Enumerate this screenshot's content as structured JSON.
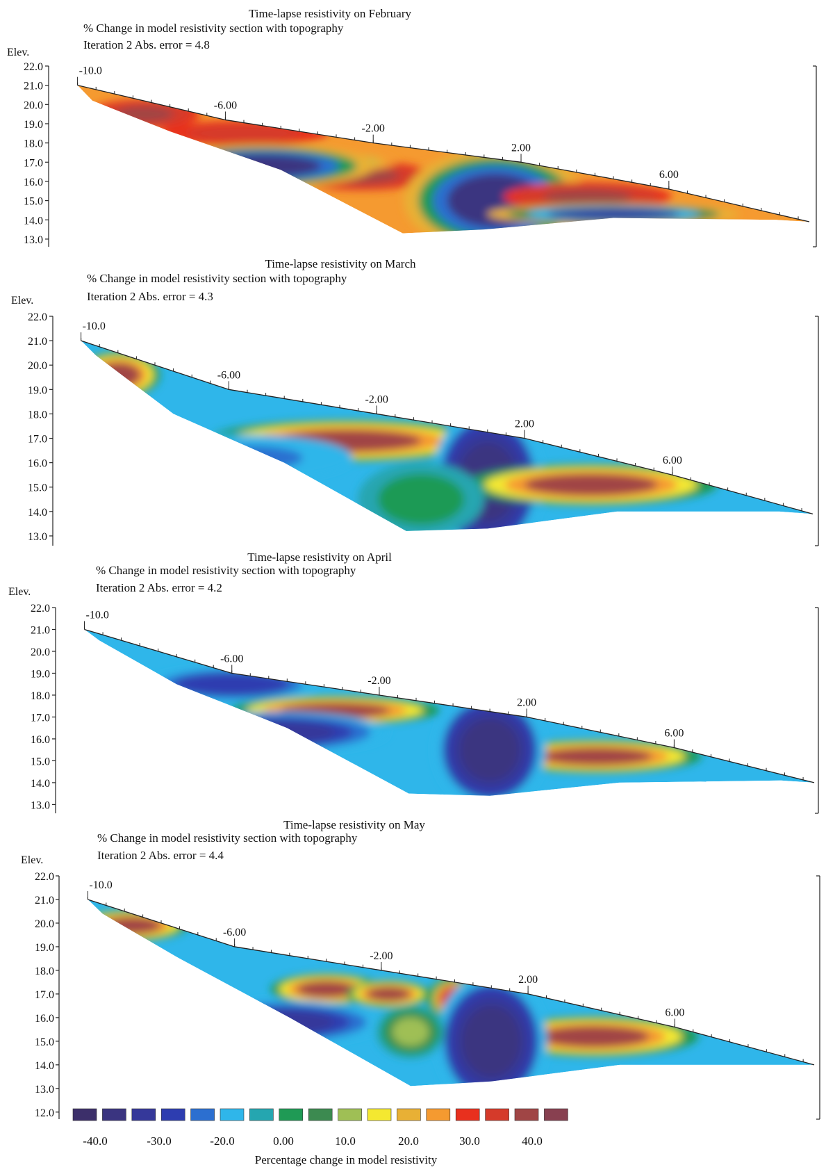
{
  "chart_data": [
    {
      "type": "heatmap",
      "title": "Time-lapse resistivity on February",
      "subtitle": "% Change in model resistivity section with topography",
      "iteration_label": "Iteration 2 Abs. error = 4.8",
      "ylabel": "Elev.",
      "y_ticks": [
        "22.0",
        "21.0",
        "20.0",
        "19.0",
        "18.0",
        "17.0",
        "16.0",
        "15.0",
        "14.0",
        "13.0"
      ],
      "x_ticks": [
        {
          "label": "-10.0",
          "x": -10
        },
        {
          "label": "-6.00",
          "x": -6
        },
        {
          "label": "-2.00",
          "x": -2
        },
        {
          "label": "2.00",
          "x": 2
        },
        {
          "label": "6.00",
          "x": 6
        }
      ],
      "ylim": [
        12.6,
        22.0
      ],
      "xlim": [
        -10.5,
        9.8
      ],
      "topography": [
        [
          -10.0,
          21.0
        ],
        [
          -6.0,
          19.2
        ],
        [
          -2.0,
          18.0
        ],
        [
          2.0,
          17.0
        ],
        [
          6.0,
          15.6
        ],
        [
          9.8,
          13.9
        ]
      ],
      "bottom": [
        [
          -9.6,
          20.2
        ],
        [
          -7.5,
          18.6
        ],
        [
          -4.5,
          16.6
        ],
        [
          -1.2,
          13.3
        ],
        [
          1.0,
          13.5
        ],
        [
          4.5,
          14.1
        ],
        [
          8.9,
          14.0
        ]
      ],
      "anomalies": [
        {
          "x": -8.2,
          "y": 19.5,
          "rx": 0.8,
          "ry": 0.4,
          "value": 40
        },
        {
          "x": -5.5,
          "y": 18.5,
          "rx": 1.2,
          "ry": 0.35,
          "value": 35
        },
        {
          "x": -2.3,
          "y": 16.3,
          "rx": 1.0,
          "ry": 0.4,
          "value": 40
        },
        {
          "x": -3.1,
          "y": 17.0,
          "rx": 0.9,
          "ry": 0.3,
          "value": 0
        },
        {
          "x": 1.3,
          "y": 15.0,
          "rx": 1.3,
          "ry": 1.4,
          "value": -40
        },
        {
          "x": 3.8,
          "y": 15.2,
          "rx": 1.2,
          "ry": 0.4,
          "value": 40
        },
        {
          "x": -5.0,
          "y": 16.8,
          "rx": 1.6,
          "ry": 0.6,
          "value": -40
        },
        {
          "x": 4.5,
          "y": 14.3,
          "rx": 1.8,
          "ry": 0.3,
          "value": -35
        }
      ],
      "background_value": 25
    },
    {
      "type": "heatmap",
      "title": "Time-lapse resistivity on March",
      "subtitle": "% Change in model resistivity section with topography",
      "iteration_label": "Iteration 2 Abs. error = 4.3",
      "ylabel": "Elev.",
      "y_ticks": [
        "22.0",
        "21.0",
        "20.0",
        "19.0",
        "18.0",
        "17.0",
        "16.0",
        "15.0",
        "14.0",
        "13.0"
      ],
      "x_ticks": [
        {
          "label": "-10.0",
          "x": -10
        },
        {
          "label": "-6.00",
          "x": -6
        },
        {
          "label": "-2.00",
          "x": -2
        },
        {
          "label": "2.00",
          "x": 2
        },
        {
          "label": "6.00",
          "x": 6
        }
      ],
      "ylim": [
        12.6,
        22.0
      ],
      "xlim": [
        -10.5,
        9.8
      ],
      "topography": [
        [
          -10.0,
          21.0
        ],
        [
          -6.0,
          19.0
        ],
        [
          -2.0,
          18.0
        ],
        [
          2.0,
          17.0
        ],
        [
          6.0,
          15.5
        ],
        [
          9.8,
          13.9
        ]
      ],
      "bottom": [
        [
          -9.6,
          20.4
        ],
        [
          -7.5,
          18.0
        ],
        [
          -4.5,
          16.0
        ],
        [
          -1.2,
          13.2
        ],
        [
          1.0,
          13.3
        ],
        [
          4.5,
          14.0
        ],
        [
          8.9,
          14.0
        ]
      ],
      "anomalies": [
        {
          "x": -9.0,
          "y": 19.6,
          "rx": 0.6,
          "ry": 0.5,
          "value": 40
        },
        {
          "x": -2.8,
          "y": 16.9,
          "rx": 2.0,
          "ry": 0.45,
          "value": 40
        },
        {
          "x": 1.0,
          "y": 15.2,
          "rx": 0.8,
          "ry": 1.6,
          "value": -40
        },
        {
          "x": 3.8,
          "y": 15.1,
          "rx": 1.8,
          "ry": 0.45,
          "value": 40
        },
        {
          "x": -5.5,
          "y": 16.2,
          "rx": 1.5,
          "ry": 0.5,
          "value": -20
        },
        {
          "x": -0.8,
          "y": 14.5,
          "rx": 0.9,
          "ry": 0.8,
          "value": -5
        }
      ],
      "background_value": -15
    },
    {
      "type": "heatmap",
      "title": "Time-lapse resistivity on April",
      "subtitle": "% Change in model resistivity section with topography",
      "iteration_label": "Iteration 2 Abs. error = 4.2",
      "ylabel": "Elev.",
      "y_ticks": [
        "22.0",
        "21.0",
        "20.0",
        "19.0",
        "18.0",
        "17.0",
        "16.0",
        "15.0",
        "14.0",
        "13.0"
      ],
      "x_ticks": [
        {
          "label": "-10.0",
          "x": -10
        },
        {
          "label": "-6.00",
          "x": -6
        },
        {
          "label": "-2.00",
          "x": -2
        },
        {
          "label": "2.00",
          "x": 2
        },
        {
          "label": "6.00",
          "x": 6
        }
      ],
      "ylim": [
        12.6,
        22.0
      ],
      "xlim": [
        -10.5,
        9.8
      ],
      "topography": [
        [
          -10.0,
          21.0
        ],
        [
          -6.0,
          19.0
        ],
        [
          -2.0,
          18.0
        ],
        [
          2.0,
          17.0
        ],
        [
          6.0,
          15.6
        ],
        [
          9.8,
          14.0
        ]
      ],
      "bottom": [
        [
          -9.6,
          20.5
        ],
        [
          -7.5,
          18.5
        ],
        [
          -4.5,
          16.5
        ],
        [
          -1.2,
          13.5
        ],
        [
          1.0,
          13.4
        ],
        [
          4.5,
          14.0
        ],
        [
          8.9,
          14.1
        ]
      ],
      "anomalies": [
        {
          "x": -3.2,
          "y": 17.3,
          "rx": 1.5,
          "ry": 0.35,
          "value": 40
        },
        {
          "x": 3.9,
          "y": 15.2,
          "rx": 1.5,
          "ry": 0.4,
          "value": 40
        },
        {
          "x": 1.0,
          "y": 15.5,
          "rx": 0.8,
          "ry": 1.4,
          "value": -40
        },
        {
          "x": -4.8,
          "y": 16.3,
          "rx": 1.6,
          "ry": 0.5,
          "value": -35
        },
        {
          "x": -6.0,
          "y": 18.5,
          "rx": 1.2,
          "ry": 0.4,
          "value": -30
        }
      ],
      "background_value": -15
    },
    {
      "type": "heatmap",
      "title": "Time-lapse resistivity on May",
      "subtitle": "% Change in model resistivity section with topography",
      "iteration_label": "Iteration 2 Abs. error = 4.4",
      "ylabel": "Elev.",
      "y_ticks": [
        "22.0",
        "21.0",
        "20.0",
        "19.0",
        "18.0",
        "17.0",
        "16.0",
        "15.0",
        "14.0",
        "13.0",
        "12.0"
      ],
      "x_ticks": [
        {
          "label": "-10.0",
          "x": -10
        },
        {
          "label": "-6.00",
          "x": -6
        },
        {
          "label": "-2.00",
          "x": -2
        },
        {
          "label": "2.00",
          "x": 2
        },
        {
          "label": "6.00",
          "x": 6
        }
      ],
      "ylim": [
        11.7,
        22.0
      ],
      "xlim": [
        -10.5,
        9.8
      ],
      "topography": [
        [
          -10.0,
          21.0
        ],
        [
          -6.0,
          19.0
        ],
        [
          -2.0,
          18.0
        ],
        [
          2.0,
          17.0
        ],
        [
          6.0,
          15.6
        ],
        [
          9.8,
          14.0
        ]
      ],
      "bottom": [
        [
          -9.6,
          20.4
        ],
        [
          -7.5,
          18.5
        ],
        [
          -4.5,
          16.0
        ],
        [
          -1.2,
          13.1
        ],
        [
          1.0,
          13.3
        ],
        [
          4.5,
          14.0
        ],
        [
          8.9,
          14.0
        ]
      ],
      "anomalies": [
        {
          "x": -8.8,
          "y": 19.9,
          "rx": 0.8,
          "ry": 0.35,
          "value": 40
        },
        {
          "x": -3.5,
          "y": 17.2,
          "rx": 0.8,
          "ry": 0.35,
          "value": 40
        },
        {
          "x": -1.8,
          "y": 17.0,
          "rx": 0.6,
          "ry": 0.3,
          "value": 40
        },
        {
          "x": 0.0,
          "y": 16.8,
          "rx": 0.4,
          "ry": 0.5,
          "value": 35
        },
        {
          "x": 3.8,
          "y": 15.2,
          "rx": 1.5,
          "ry": 0.45,
          "value": 40
        },
        {
          "x": 1.0,
          "y": 15.0,
          "rx": 0.8,
          "ry": 1.5,
          "value": -40
        },
        {
          "x": -4.8,
          "y": 15.8,
          "rx": 1.5,
          "ry": 0.5,
          "value": -35
        },
        {
          "x": -1.2,
          "y": 15.4,
          "rx": 0.5,
          "ry": 0.6,
          "value": 8
        }
      ],
      "background_value": -15
    }
  ],
  "legend": {
    "title": "Percentage change in model resistivity",
    "tick_labels": [
      "-40.0",
      "-30.0",
      "-20.0",
      "0.00",
      "10.0",
      "20.0",
      "30.0",
      "40.0"
    ],
    "colors": [
      "#3c2f6a",
      "#3a3480",
      "#35389a",
      "#2d3db0",
      "#2c6fd0",
      "#2fb6ea",
      "#25a6b0",
      "#1f9a55",
      "#3c8a50",
      "#9fbf55",
      "#f4e830",
      "#e8b035",
      "#f59a30",
      "#e8301e",
      "#d53a2a",
      "#a04545",
      "#884050"
    ]
  }
}
